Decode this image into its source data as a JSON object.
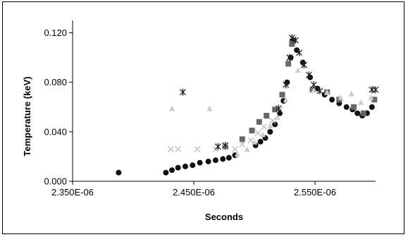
{
  "chart_data": {
    "type": "scatter",
    "xlabel": "Seconds",
    "ylabel": "Temperature (keV)",
    "xlim": [
      2.35e-06,
      2.6e-06
    ],
    "ylim": [
      0,
      0.13
    ],
    "grid": false,
    "legend": "none",
    "x_ticks": [
      {
        "value": 2.35e-06,
        "label": "2.350E-06"
      },
      {
        "value": 2.45e-06,
        "label": "2.450E-06"
      },
      {
        "value": 2.55e-06,
        "label": "2.550E-06"
      }
    ],
    "y_ticks": [
      {
        "value": 0.0,
        "label": "0.000"
      },
      {
        "value": 0.04,
        "label": "0.040"
      },
      {
        "value": 0.08,
        "label": "0.080"
      },
      {
        "value": 0.12,
        "label": "0.120"
      }
    ],
    "series": [
      {
        "marker": "circle",
        "color": "#111111",
        "points": [
          [
            2.388e-06,
            0.007
          ],
          [
            2.427e-06,
            0.007
          ],
          [
            2.432e-06,
            0.009
          ],
          [
            2.437e-06,
            0.011
          ],
          [
            2.443e-06,
            0.012
          ],
          [
            2.449e-06,
            0.013
          ],
          [
            2.455e-06,
            0.015
          ],
          [
            2.462e-06,
            0.016
          ],
          [
            2.468e-06,
            0.017
          ],
          [
            2.474e-06,
            0.018
          ],
          [
            2.479e-06,
            0.019
          ],
          [
            2.484e-06,
            0.021
          ],
          [
            2.501e-06,
            0.029
          ],
          [
            2.505e-06,
            0.032
          ],
          [
            2.509e-06,
            0.035
          ],
          [
            2.513e-06,
            0.04
          ],
          [
            2.517e-06,
            0.046
          ],
          [
            2.521e-06,
            0.055
          ],
          [
            2.524e-06,
            0.065
          ],
          [
            2.527e-06,
            0.08
          ],
          [
            2.53e-06,
            0.1
          ],
          [
            2.532e-06,
            0.114
          ],
          [
            2.535e-06,
            0.106
          ],
          [
            2.54e-06,
            0.096
          ],
          [
            2.546e-06,
            0.084
          ],
          [
            2.552e-06,
            0.075
          ],
          [
            2.558e-06,
            0.07
          ],
          [
            2.564e-06,
            0.066
          ],
          [
            2.57e-06,
            0.063
          ],
          [
            2.576e-06,
            0.06
          ],
          [
            2.581e-06,
            0.058
          ],
          [
            2.585e-06,
            0.055
          ],
          [
            2.589e-06,
            0.053
          ],
          [
            2.593e-06,
            0.055
          ],
          [
            2.597e-06,
            0.06
          ]
        ]
      },
      {
        "marker": "square",
        "color": "#666666",
        "points": [
          [
            2.476e-06,
            0.028
          ],
          [
            2.49e-06,
            0.034
          ],
          [
            2.498e-06,
            0.041
          ],
          [
            2.504e-06,
            0.048
          ],
          [
            2.51e-06,
            0.053
          ],
          [
            2.517e-06,
            0.058
          ],
          [
            2.523e-06,
            0.07
          ],
          [
            2.528e-06,
            0.095
          ],
          [
            2.531e-06,
            0.111
          ],
          [
            2.548e-06,
            0.074
          ],
          [
            2.56e-06,
            0.072
          ],
          [
            2.57e-06,
            0.066
          ],
          [
            2.582e-06,
            0.06
          ],
          [
            2.59e-06,
            0.055
          ],
          [
            2.599e-06,
            0.066
          ]
        ]
      },
      {
        "marker": "triangle",
        "color": "#cccccc",
        "points": [
          [
            2.432e-06,
            0.059
          ],
          [
            2.463e-06,
            0.059
          ],
          [
            2.486e-06,
            0.022
          ],
          [
            2.494e-06,
            0.026
          ],
          [
            2.5e-06,
            0.032
          ],
          [
            2.507e-06,
            0.038
          ],
          [
            2.513e-06,
            0.045
          ],
          [
            2.519e-06,
            0.052
          ],
          [
            2.526e-06,
            0.066
          ],
          [
            2.536e-06,
            0.09
          ],
          [
            2.549e-06,
            0.074
          ],
          [
            2.56e-06,
            0.072
          ],
          [
            2.571e-06,
            0.068
          ],
          [
            2.58e-06,
            0.071
          ],
          [
            2.588e-06,
            0.064
          ],
          [
            2.596e-06,
            0.068
          ]
        ]
      },
      {
        "marker": "x",
        "color": "#bbbbbb",
        "points": [
          [
            2.431e-06,
            0.026
          ],
          [
            2.437e-06,
            0.026
          ],
          [
            2.453e-06,
            0.026
          ],
          [
            2.468e-06,
            0.026
          ],
          [
            2.476e-06,
            0.028
          ],
          [
            2.484e-06,
            0.026
          ],
          [
            2.49e-06,
            0.03
          ],
          [
            2.497e-06,
            0.033
          ],
          [
            2.503e-06,
            0.039
          ],
          [
            2.508e-06,
            0.044
          ],
          [
            2.515e-06,
            0.049
          ],
          [
            2.521e-06,
            0.058
          ]
        ]
      },
      {
        "marker": "star",
        "color": "#222222",
        "points": [
          [
            2.441e-06,
            0.072
          ],
          [
            2.47e-06,
            0.028
          ],
          [
            2.476e-06,
            0.029
          ],
          [
            2.52e-06,
            0.059
          ],
          [
            2.526e-06,
            0.078
          ],
          [
            2.529e-06,
            0.1
          ],
          [
            2.531e-06,
            0.116
          ],
          [
            2.534e-06,
            0.114
          ],
          [
            2.537e-06,
            0.104
          ],
          [
            2.541e-06,
            0.094
          ],
          [
            2.545e-06,
            0.086
          ],
          [
            2.549e-06,
            0.078
          ],
          [
            2.554e-06,
            0.073
          ],
          [
            2.597e-06,
            0.074
          ],
          [
            2.6e-06,
            0.074
          ]
        ]
      }
    ]
  }
}
